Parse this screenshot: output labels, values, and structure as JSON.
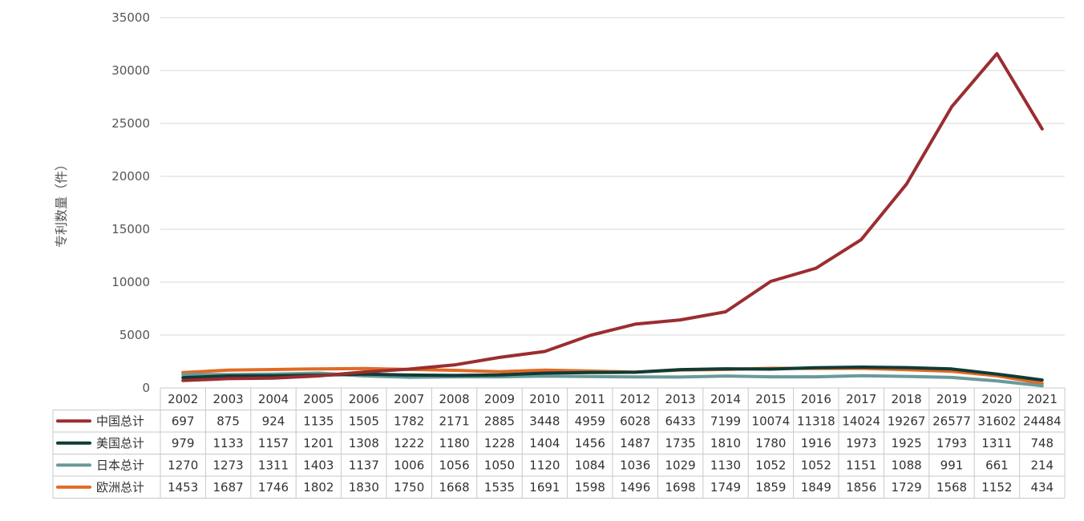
{
  "chart_data": {
    "type": "line",
    "ylabel": "专利数量（件）",
    "ylim": [
      0,
      35000
    ],
    "yticks": [
      0,
      5000,
      10000,
      15000,
      20000,
      25000,
      30000,
      35000
    ],
    "grid": true,
    "legend": "data-table-left",
    "categories": [
      "2002",
      "2003",
      "2004",
      "2005",
      "2006",
      "2007",
      "2008",
      "2009",
      "2010",
      "2011",
      "2012",
      "2013",
      "2014",
      "2015",
      "2016",
      "2017",
      "2018",
      "2019",
      "2020",
      "2021"
    ],
    "series": [
      {
        "name": "中国总计",
        "color": "#9b2d30",
        "values": [
          697,
          875,
          924,
          1135,
          1505,
          1782,
          2171,
          2885,
          3448,
          4959,
          6028,
          6433,
          7199,
          10074,
          11318,
          14024,
          19267,
          26577,
          31602,
          24484
        ]
      },
      {
        "name": "美国总计",
        "color": "#0f3b36",
        "values": [
          979,
          1133,
          1157,
          1201,
          1308,
          1222,
          1180,
          1228,
          1404,
          1456,
          1487,
          1735,
          1810,
          1780,
          1916,
          1973,
          1925,
          1793,
          1311,
          748
        ]
      },
      {
        "name": "日本总计",
        "color": "#6a9a9a",
        "values": [
          1270,
          1273,
          1311,
          1403,
          1137,
          1006,
          1056,
          1050,
          1120,
          1084,
          1036,
          1029,
          1130,
          1052,
          1052,
          1151,
          1088,
          991,
          661,
          214
        ]
      },
      {
        "name": "欧洲总计",
        "color": "#e06a25",
        "values": [
          1453,
          1687,
          1746,
          1802,
          1830,
          1750,
          1668,
          1535,
          1691,
          1598,
          1496,
          1698,
          1749,
          1859,
          1849,
          1856,
          1729,
          1568,
          1152,
          434
        ]
      }
    ]
  }
}
